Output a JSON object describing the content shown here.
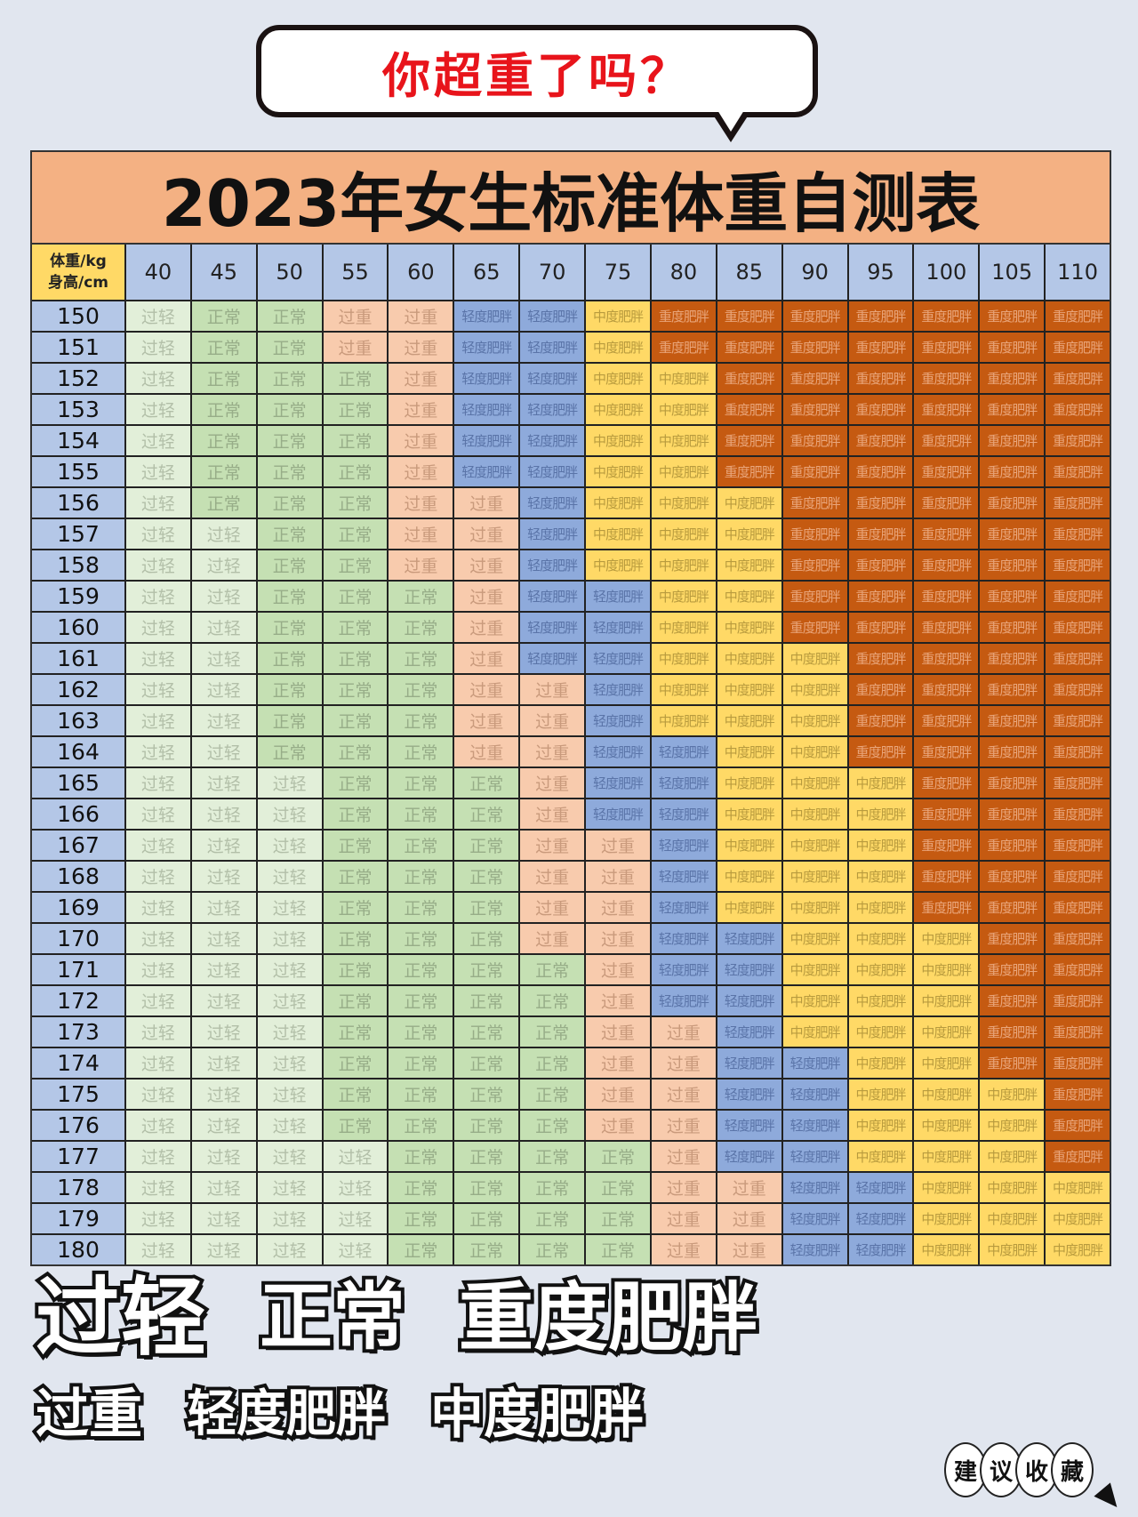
{
  "bubble": {
    "text": "你超重了吗？"
  },
  "save_badge": [
    "建",
    "议",
    "收",
    "藏"
  ],
  "overlay_labels": {
    "light_obese": [
      "轻度",
      "肥胖"
    ],
    "severe_obese": [
      "重度",
      "肥胖"
    ],
    "normal": "正常",
    "moderate_obese": [
      "中度",
      "肥胖"
    ],
    "overweight": "过重",
    "underweight": "过轻"
  },
  "chart_data": {
    "type": "table",
    "title": "2023年女生标准体重自测表",
    "corner": {
      "top": "体重/kg",
      "bottom": "身高/cm"
    },
    "columns": [
      "40",
      "45",
      "50",
      "55",
      "60",
      "65",
      "70",
      "75",
      "80",
      "85",
      "90",
      "95",
      "100",
      "105",
      "110"
    ],
    "categories": [
      {
        "label": "过轻",
        "color": "#e2efd9",
        "text_color": "#b2bfa8"
      },
      {
        "label": "正常",
        "color": "#c5e0b3",
        "text_color": "#97ad88"
      },
      {
        "label": "过重",
        "color": "#f8cbad",
        "text_color": "#c99a7c"
      },
      {
        "label": "轻度肥胖",
        "color": "#8eaadb",
        "text_color": "#5a74a8"
      },
      {
        "label": "中度肥胖",
        "color": "#ffd966",
        "text_color": "#b89b3e"
      },
      {
        "label": "重度肥胖",
        "color": "#c55a11",
        "text_color": "#e9a57a"
      }
    ],
    "rows": [
      {
        "height": "150",
        "cells": [
          "过轻",
          "正常",
          "正常",
          "过重",
          "过重",
          "轻度肥胖",
          "轻度肥胖",
          "中度肥胖",
          "重度肥胖",
          "重度肥胖",
          "重度肥胖",
          "重度肥胖",
          "重度肥胖",
          "重度肥胖",
          "重度肥胖"
        ]
      },
      {
        "height": "151",
        "cells": [
          "过轻",
          "正常",
          "正常",
          "过重",
          "过重",
          "轻度肥胖",
          "轻度肥胖",
          "中度肥胖",
          "重度肥胖",
          "重度肥胖",
          "重度肥胖",
          "重度肥胖",
          "重度肥胖",
          "重度肥胖",
          "重度肥胖"
        ]
      },
      {
        "height": "152",
        "cells": [
          "过轻",
          "正常",
          "正常",
          "正常",
          "过重",
          "轻度肥胖",
          "轻度肥胖",
          "中度肥胖",
          "中度肥胖",
          "重度肥胖",
          "重度肥胖",
          "重度肥胖",
          "重度肥胖",
          "重度肥胖",
          "重度肥胖"
        ]
      },
      {
        "height": "153",
        "cells": [
          "过轻",
          "正常",
          "正常",
          "正常",
          "过重",
          "轻度肥胖",
          "轻度肥胖",
          "中度肥胖",
          "中度肥胖",
          "重度肥胖",
          "重度肥胖",
          "重度肥胖",
          "重度肥胖",
          "重度肥胖",
          "重度肥胖"
        ]
      },
      {
        "height": "154",
        "cells": [
          "过轻",
          "正常",
          "正常",
          "正常",
          "过重",
          "轻度肥胖",
          "轻度肥胖",
          "中度肥胖",
          "中度肥胖",
          "重度肥胖",
          "重度肥胖",
          "重度肥胖",
          "重度肥胖",
          "重度肥胖",
          "重度肥胖"
        ]
      },
      {
        "height": "155",
        "cells": [
          "过轻",
          "正常",
          "正常",
          "正常",
          "过重",
          "轻度肥胖",
          "轻度肥胖",
          "中度肥胖",
          "中度肥胖",
          "重度肥胖",
          "重度肥胖",
          "重度肥胖",
          "重度肥胖",
          "重度肥胖",
          "重度肥胖"
        ]
      },
      {
        "height": "156",
        "cells": [
          "过轻",
          "正常",
          "正常",
          "正常",
          "过重",
          "过重",
          "轻度肥胖",
          "中度肥胖",
          "中度肥胖",
          "中度肥胖",
          "重度肥胖",
          "重度肥胖",
          "重度肥胖",
          "重度肥胖",
          "重度肥胖"
        ]
      },
      {
        "height": "157",
        "cells": [
          "过轻",
          "过轻",
          "正常",
          "正常",
          "过重",
          "过重",
          "轻度肥胖",
          "中度肥胖",
          "中度肥胖",
          "中度肥胖",
          "重度肥胖",
          "重度肥胖",
          "重度肥胖",
          "重度肥胖",
          "重度肥胖"
        ]
      },
      {
        "height": "158",
        "cells": [
          "过轻",
          "过轻",
          "正常",
          "正常",
          "过重",
          "过重",
          "轻度肥胖",
          "中度肥胖",
          "中度肥胖",
          "中度肥胖",
          "重度肥胖",
          "重度肥胖",
          "重度肥胖",
          "重度肥胖",
          "重度肥胖"
        ]
      },
      {
        "height": "159",
        "cells": [
          "过轻",
          "过轻",
          "正常",
          "正常",
          "正常",
          "过重",
          "轻度肥胖",
          "轻度肥胖",
          "中度肥胖",
          "中度肥胖",
          "重度肥胖",
          "重度肥胖",
          "重度肥胖",
          "重度肥胖",
          "重度肥胖"
        ]
      },
      {
        "height": "160",
        "cells": [
          "过轻",
          "过轻",
          "正常",
          "正常",
          "正常",
          "过重",
          "轻度肥胖",
          "轻度肥胖",
          "中度肥胖",
          "中度肥胖",
          "重度肥胖",
          "重度肥胖",
          "重度肥胖",
          "重度肥胖",
          "重度肥胖"
        ]
      },
      {
        "height": "161",
        "cells": [
          "过轻",
          "过轻",
          "正常",
          "正常",
          "正常",
          "过重",
          "轻度肥胖",
          "轻度肥胖",
          "中度肥胖",
          "中度肥胖",
          "中度肥胖",
          "重度肥胖",
          "重度肥胖",
          "重度肥胖",
          "重度肥胖"
        ]
      },
      {
        "height": "162",
        "cells": [
          "过轻",
          "过轻",
          "正常",
          "正常",
          "正常",
          "过重",
          "过重",
          "轻度肥胖",
          "中度肥胖",
          "中度肥胖",
          "中度肥胖",
          "重度肥胖",
          "重度肥胖",
          "重度肥胖",
          "重度肥胖"
        ]
      },
      {
        "height": "163",
        "cells": [
          "过轻",
          "过轻",
          "正常",
          "正常",
          "正常",
          "过重",
          "过重",
          "轻度肥胖",
          "中度肥胖",
          "中度肥胖",
          "中度肥胖",
          "重度肥胖",
          "重度肥胖",
          "重度肥胖",
          "重度肥胖"
        ]
      },
      {
        "height": "164",
        "cells": [
          "过轻",
          "过轻",
          "正常",
          "正常",
          "正常",
          "过重",
          "过重",
          "轻度肥胖",
          "轻度肥胖",
          "中度肥胖",
          "中度肥胖",
          "重度肥胖",
          "重度肥胖",
          "重度肥胖",
          "重度肥胖"
        ]
      },
      {
        "height": "165",
        "cells": [
          "过轻",
          "过轻",
          "过轻",
          "正常",
          "正常",
          "正常",
          "过重",
          "轻度肥胖",
          "轻度肥胖",
          "中度肥胖",
          "中度肥胖",
          "中度肥胖",
          "重度肥胖",
          "重度肥胖",
          "重度肥胖"
        ]
      },
      {
        "height": "166",
        "cells": [
          "过轻",
          "过轻",
          "过轻",
          "正常",
          "正常",
          "正常",
          "过重",
          "轻度肥胖",
          "轻度肥胖",
          "中度肥胖",
          "中度肥胖",
          "中度肥胖",
          "重度肥胖",
          "重度肥胖",
          "重度肥胖"
        ]
      },
      {
        "height": "167",
        "cells": [
          "过轻",
          "过轻",
          "过轻",
          "正常",
          "正常",
          "正常",
          "过重",
          "过重",
          "轻度肥胖",
          "中度肥胖",
          "中度肥胖",
          "中度肥胖",
          "重度肥胖",
          "重度肥胖",
          "重度肥胖"
        ]
      },
      {
        "height": "168",
        "cells": [
          "过轻",
          "过轻",
          "过轻",
          "正常",
          "正常",
          "正常",
          "过重",
          "过重",
          "轻度肥胖",
          "中度肥胖",
          "中度肥胖",
          "中度肥胖",
          "重度肥胖",
          "重度肥胖",
          "重度肥胖"
        ]
      },
      {
        "height": "169",
        "cells": [
          "过轻",
          "过轻",
          "过轻",
          "正常",
          "正常",
          "正常",
          "过重",
          "过重",
          "轻度肥胖",
          "中度肥胖",
          "中度肥胖",
          "中度肥胖",
          "重度肥胖",
          "重度肥胖",
          "重度肥胖"
        ]
      },
      {
        "height": "170",
        "cells": [
          "过轻",
          "过轻",
          "过轻",
          "正常",
          "正常",
          "正常",
          "过重",
          "过重",
          "轻度肥胖",
          "轻度肥胖",
          "中度肥胖",
          "中度肥胖",
          "中度肥胖",
          "重度肥胖",
          "重度肥胖"
        ]
      },
      {
        "height": "171",
        "cells": [
          "过轻",
          "过轻",
          "过轻",
          "正常",
          "正常",
          "正常",
          "正常",
          "过重",
          "轻度肥胖",
          "轻度肥胖",
          "中度肥胖",
          "中度肥胖",
          "中度肥胖",
          "重度肥胖",
          "重度肥胖"
        ]
      },
      {
        "height": "172",
        "cells": [
          "过轻",
          "过轻",
          "过轻",
          "正常",
          "正常",
          "正常",
          "正常",
          "过重",
          "轻度肥胖",
          "轻度肥胖",
          "中度肥胖",
          "中度肥胖",
          "中度肥胖",
          "重度肥胖",
          "重度肥胖"
        ]
      },
      {
        "height": "173",
        "cells": [
          "过轻",
          "过轻",
          "过轻",
          "正常",
          "正常",
          "正常",
          "正常",
          "过重",
          "过重",
          "轻度肥胖",
          "中度肥胖",
          "中度肥胖",
          "中度肥胖",
          "重度肥胖",
          "重度肥胖"
        ]
      },
      {
        "height": "174",
        "cells": [
          "过轻",
          "过轻",
          "过轻",
          "正常",
          "正常",
          "正常",
          "正常",
          "过重",
          "过重",
          "轻度肥胖",
          "轻度肥胖",
          "中度肥胖",
          "中度肥胖",
          "重度肥胖",
          "重度肥胖"
        ]
      },
      {
        "height": "175",
        "cells": [
          "过轻",
          "过轻",
          "过轻",
          "正常",
          "正常",
          "正常",
          "正常",
          "过重",
          "过重",
          "轻度肥胖",
          "轻度肥胖",
          "中度肥胖",
          "中度肥胖",
          "中度肥胖",
          "重度肥胖"
        ]
      },
      {
        "height": "176",
        "cells": [
          "过轻",
          "过轻",
          "过轻",
          "正常",
          "正常",
          "正常",
          "正常",
          "过重",
          "过重",
          "轻度肥胖",
          "轻度肥胖",
          "中度肥胖",
          "中度肥胖",
          "中度肥胖",
          "重度肥胖"
        ]
      },
      {
        "height": "177",
        "cells": [
          "过轻",
          "过轻",
          "过轻",
          "过轻",
          "正常",
          "正常",
          "正常",
          "正常",
          "过重",
          "轻度肥胖",
          "轻度肥胖",
          "中度肥胖",
          "中度肥胖",
          "中度肥胖",
          "重度肥胖"
        ]
      },
      {
        "height": "178",
        "cells": [
          "过轻",
          "过轻",
          "过轻",
          "过轻",
          "正常",
          "正常",
          "正常",
          "正常",
          "过重",
          "过重",
          "轻度肥胖",
          "轻度肥胖",
          "中度肥胖",
          "中度肥胖",
          "中度肥胖"
        ]
      },
      {
        "height": "179",
        "cells": [
          "过轻",
          "过轻",
          "过轻",
          "过轻",
          "正常",
          "正常",
          "正常",
          "正常",
          "过重",
          "过重",
          "轻度肥胖",
          "轻度肥胖",
          "中度肥胖",
          "中度肥胖",
          "中度肥胖"
        ]
      },
      {
        "height": "180",
        "cells": [
          "过轻",
          "过轻",
          "过轻",
          "过轻",
          "正常",
          "正常",
          "正常",
          "正常",
          "过重",
          "过重",
          "轻度肥胖",
          "轻度肥胖",
          "中度肥胖",
          "中度肥胖",
          "中度肥胖"
        ]
      }
    ]
  }
}
